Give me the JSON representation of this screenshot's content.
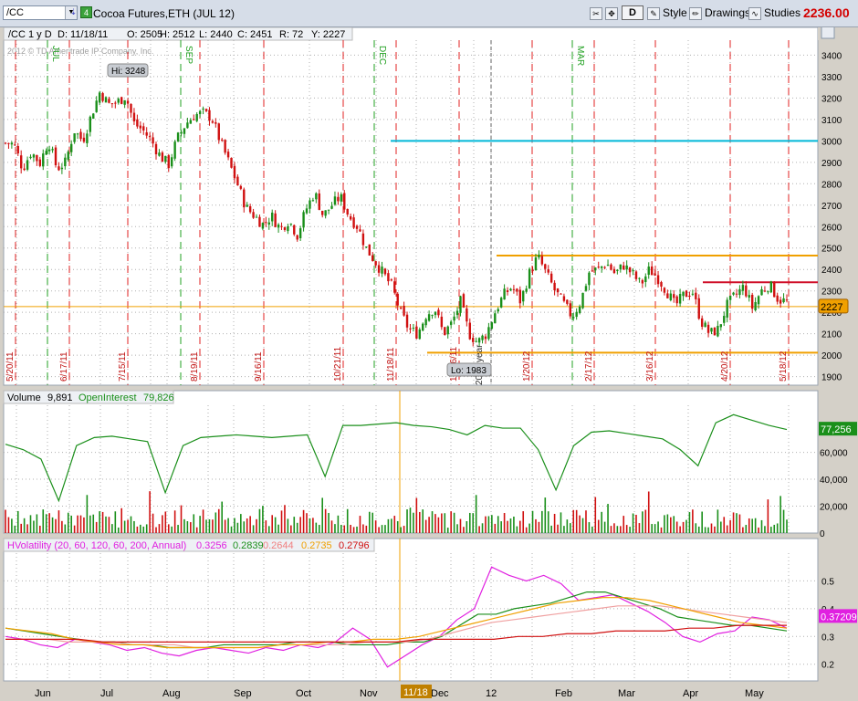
{
  "toolbar": {
    "symbol": "/CC",
    "link_number": "4",
    "instrument_title": "Cocoa Futures,ETH (JUL 12)",
    "style_label": "Style",
    "drawings_label": "Drawings",
    "studies_label": "Studies",
    "aggregation_label": "D",
    "last_price": "2236.00"
  },
  "colors": {
    "up_candle": "#1a8f1a",
    "down_candle": "#d01010",
    "resistance_orange": "#f0a000",
    "target_cyan": "#00b8d8",
    "red_level": "#d0102a",
    "price_bubble": "#f0a000",
    "hv_magenta": "#e020e0"
  },
  "price_header": {
    "symbol_label": "/CC 1 y D",
    "date": "D: 11/18/11",
    "open": "O: 2505",
    "high": "H: 2512",
    "low": "L: 2440",
    "close": "C: 2451",
    "range": "R: 72",
    "y": "Y: 2227",
    "copyright": "2012 © TD Ameritrade IP Company, Inc."
  },
  "chart_data": [
    {
      "type": "candlestick",
      "ylim": [
        1860,
        3470
      ],
      "yticks": [
        1900,
        2000,
        2100,
        2200,
        2300,
        2400,
        2500,
        2600,
        2700,
        2800,
        2900,
        3000,
        3100,
        3200,
        3300,
        3400
      ],
      "x": [
        "5/20/11",
        "6/17/11",
        "7/15/11",
        "8/19/11",
        "9/16/11",
        "10/21/11",
        "11/18/11",
        "12/16/11",
        "1/20/12",
        "2/17/12",
        "3/16/12",
        "4/20/12",
        "5/18/12"
      ],
      "close_path": [
        2990,
        2985,
        2870,
        2950,
        2895,
        3000,
        2870,
        2900,
        3050,
        3000,
        3120,
        3230,
        3170,
        3180,
        3210,
        3080,
        3050,
        3000,
        2930,
        2890,
        3010,
        3080,
        3120,
        3130,
        3110,
        3000,
        2900,
        2800,
        2690,
        2650,
        2610,
        2650,
        2590,
        2630,
        2560,
        2680,
        2760,
        2650,
        2700,
        2740,
        2650,
        2600,
        2500,
        2440,
        2380,
        2320,
        2200,
        2120,
        2100,
        2190,
        2220,
        2100,
        2150,
        2250,
        2100,
        2060,
        2100,
        2200,
        2280,
        2320,
        2250,
        2380,
        2460,
        2380,
        2300,
        2240,
        2180,
        2250,
        2390,
        2400,
        2430,
        2380,
        2420,
        2380,
        2330,
        2400,
        2360,
        2300,
        2230,
        2280,
        2300,
        2160,
        2100,
        2120,
        2230,
        2280,
        2320,
        2220,
        2300,
        2330,
        2260,
        2250
      ],
      "high_label": "Hi: 3248",
      "low_label": "Lo: 1983",
      "current_price_label": "2227",
      "levels": [
        {
          "value": 3000,
          "from": "12/16/11",
          "color": "cyan"
        },
        {
          "value": 2465,
          "from": "12/23/11",
          "color": "orange"
        },
        {
          "value": 2340,
          "from": "4/12/12",
          "color": "red"
        },
        {
          "value": 2227,
          "from": "start",
          "color": "orange-thin"
        },
        {
          "value": 2012,
          "from": "11/25/11",
          "color": "orange"
        }
      ],
      "expiry_markers": [
        "JUL",
        "SEP",
        "DEC",
        "MAR"
      ],
      "year_marker": "2012 year"
    },
    {
      "type": "line+bar",
      "title": "Volume",
      "volume_value": "9,891",
      "series": [
        {
          "name": "OpenInterest",
          "value_label": "79,826",
          "current_label": "77,256",
          "values": [
            66000,
            62000,
            55000,
            24000,
            65000,
            71000,
            72000,
            70000,
            68000,
            30000,
            65000,
            71000,
            72000,
            73000,
            72000,
            71000,
            72000,
            73000,
            42000,
            80000,
            80000,
            81000,
            82000,
            80000,
            79000,
            77000,
            73000,
            80000,
            78000,
            78000,
            62000,
            32000,
            65000,
            75000,
            76000,
            74000,
            72000,
            70000,
            62000,
            50000,
            82000,
            88000,
            84000,
            80000,
            77000
          ]
        }
      ],
      "ylim": [
        0,
        95000
      ],
      "yticks": [
        "20,000",
        "40,000",
        "60,000"
      ]
    },
    {
      "type": "line",
      "title": "HVolatility (20, 60, 120, 60, 200, Annual)",
      "series": [
        {
          "name": "HV20",
          "value_label": "0.3256",
          "color": "magenta",
          "values": [
            0.3,
            0.29,
            0.27,
            0.26,
            0.29,
            0.28,
            0.27,
            0.25,
            0.26,
            0.24,
            0.23,
            0.25,
            0.26,
            0.25,
            0.24,
            0.26,
            0.25,
            0.27,
            0.26,
            0.28,
            0.33,
            0.29,
            0.19,
            0.23,
            0.27,
            0.3,
            0.36,
            0.4,
            0.55,
            0.52,
            0.5,
            0.52,
            0.49,
            0.43,
            0.44,
            0.45,
            0.42,
            0.39,
            0.35,
            0.3,
            0.28,
            0.31,
            0.32,
            0.37,
            0.36,
            0.33
          ]
        },
        {
          "name": "HV60",
          "value_label": "0.2839",
          "color": "green",
          "values": [
            0.33,
            0.32,
            0.31,
            0.3,
            0.29,
            0.28,
            0.28,
            0.27,
            0.27,
            0.26,
            0.26,
            0.26,
            0.27,
            0.27,
            0.27,
            0.27,
            0.28,
            0.28,
            0.28,
            0.27,
            0.27,
            0.27,
            0.28,
            0.28,
            0.3,
            0.34,
            0.38,
            0.38,
            0.4,
            0.41,
            0.42,
            0.44,
            0.46,
            0.46,
            0.44,
            0.42,
            0.4,
            0.37,
            0.36,
            0.35,
            0.34,
            0.34,
            0.33,
            0.32
          ]
        },
        {
          "name": "HV120",
          "value_label": "0.2644",
          "color": "pink",
          "values": [
            0.29,
            0.29,
            0.29,
            0.28,
            0.28,
            0.28,
            0.27,
            0.27,
            0.27,
            0.26,
            0.26,
            0.26,
            0.26,
            0.27,
            0.27,
            0.27,
            0.27,
            0.28,
            0.28,
            0.28,
            0.29,
            0.31,
            0.33,
            0.35,
            0.36,
            0.37,
            0.38,
            0.39,
            0.4,
            0.41,
            0.41,
            0.41,
            0.4,
            0.39,
            0.38,
            0.37,
            0.36,
            0.35
          ]
        },
        {
          "name": "HV60b",
          "value_label": "0.2735",
          "color": "orange",
          "values": [
            0.33,
            0.32,
            0.31,
            0.29,
            0.28,
            0.27,
            0.27,
            0.26,
            0.26,
            0.26,
            0.26,
            0.26,
            0.27,
            0.27,
            0.28,
            0.28,
            0.29,
            0.29,
            0.3,
            0.32,
            0.34,
            0.36,
            0.38,
            0.4,
            0.42,
            0.43,
            0.44,
            0.44,
            0.43,
            0.41,
            0.39,
            0.37,
            0.35,
            0.34,
            0.33
          ]
        },
        {
          "name": "HV200",
          "value_label": "0.2796",
          "color": "red",
          "values": [
            0.29,
            0.29,
            0.29,
            0.29,
            0.28,
            0.28,
            0.28,
            0.28,
            0.28,
            0.28,
            0.28,
            0.28,
            0.28,
            0.28,
            0.28,
            0.28,
            0.28,
            0.29,
            0.29,
            0.29,
            0.29,
            0.3,
            0.3,
            0.31,
            0.31,
            0.32,
            0.32,
            0.32,
            0.33,
            0.33,
            0.34,
            0.34,
            0.34
          ]
        }
      ],
      "current_label": "0.37209",
      "ylim": [
        0.14,
        0.6
      ],
      "yticks": [
        "0.2",
        "0.3",
        "0.4",
        "0.5"
      ]
    }
  ],
  "time_axis": {
    "labels": [
      "Jun",
      "Jul",
      "Aug",
      "Sep",
      "Oct",
      "Nov",
      "Dec",
      "12",
      "Feb",
      "Mar",
      "Apr",
      "May"
    ],
    "cursor_label": "11/18"
  }
}
